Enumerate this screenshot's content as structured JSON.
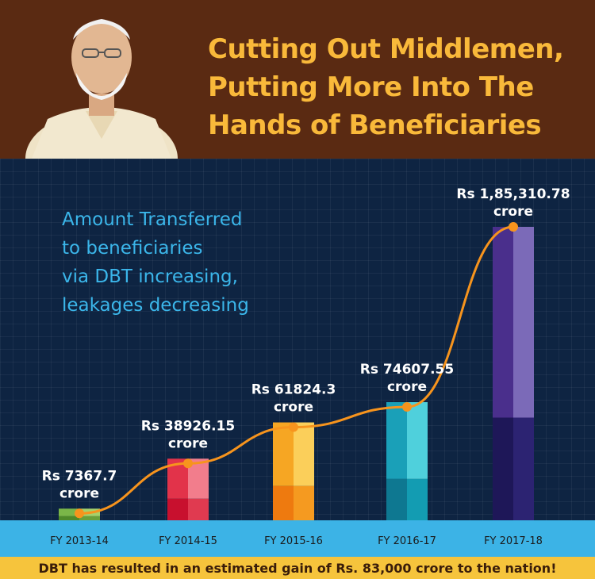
{
  "header": {
    "title_lines": [
      "Cutting Out Middlemen,",
      "Putting More Into The",
      "Hands of Beneficiaries"
    ]
  },
  "subtitle_lines": [
    "Amount Transferred",
    "to beneficiaries",
    "via DBT increasing,",
    "leakages decreasing"
  ],
  "footer": {
    "text": "DBT has resulted in an estimated gain of Rs. 83,000 crore to the nation!"
  },
  "colors": {
    "header_bg": "#5a2a12",
    "title": "#f9b93a",
    "subtitle": "#3bb6ea",
    "line": "#f7941d",
    "axis_band": "#3cb3e6",
    "footer_bg": "#f6c43c"
  },
  "chart_data": {
    "type": "bar",
    "unit": "crore",
    "categories": [
      "FY 2013-14",
      "FY 2014-15",
      "FY 2015-16",
      "FY 2016-17",
      "FY 2017-18"
    ],
    "values": [
      7367.7,
      38926.15,
      61824.3,
      74607.55,
      185310.78
    ],
    "value_labels": [
      "Rs 7367.7",
      "Rs 38926.15",
      "Rs 61824.3",
      "Rs 74607.55",
      "Rs 1,85,310.78"
    ],
    "unit_label": "crore",
    "trend_line": true,
    "bar_colors": [
      {
        "top_left": "#7ab648",
        "top_right": "#a6d16a",
        "bottom_left": "#4e8a2a",
        "bottom_right": "#6aa03a"
      },
      {
        "top_left": "#e2334a",
        "top_right": "#f27d8c",
        "bottom_left": "#c8102e",
        "bottom_right": "#e03a50"
      },
      {
        "top_left": "#f6a623",
        "top_right": "#fbcf5a",
        "bottom_left": "#ee7a0f",
        "bottom_right": "#f59a20"
      },
      {
        "top_left": "#1aa0b8",
        "top_right": "#4fd0dc",
        "bottom_left": "#0e7891",
        "bottom_right": "#139cb2"
      },
      {
        "top_left": "#4a2f8c",
        "top_right": "#7b6ab8",
        "bottom_left": "#1e1758",
        "bottom_right": "#2c2372"
      }
    ],
    "ylim": [
      0,
      200000
    ]
  }
}
